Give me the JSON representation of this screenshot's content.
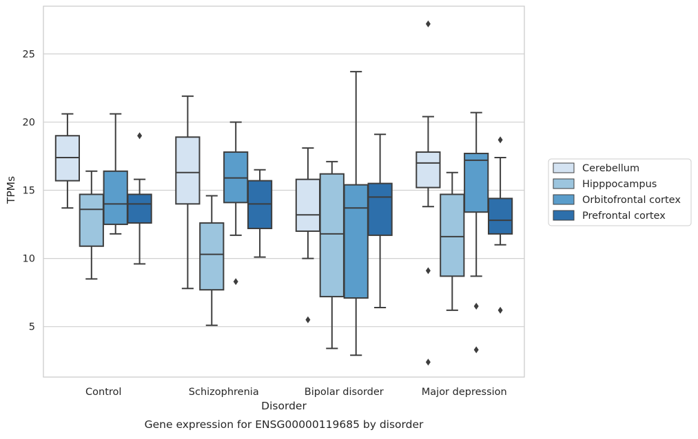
{
  "chart_data": {
    "type": "box",
    "title": "",
    "caption": "Gene expression for ENSG00000119685 by disorder",
    "xlabel": "Disorder",
    "ylabel": "TPMs",
    "ylim": [
      1.3,
      28.5
    ],
    "yticks": [
      5,
      10,
      15,
      20,
      25
    ],
    "grid": "horizontal",
    "legend_position": "right",
    "categories": [
      "Control",
      "Schizophrenia",
      "Bipolar disorder",
      "Major depression"
    ],
    "series": [
      {
        "name": "Cerebellum",
        "color": "#d4e3f2",
        "boxes": [
          {
            "whislo": 13.7,
            "q1": 15.7,
            "med": 17.4,
            "q3": 19.0,
            "whishi": 20.6,
            "fliers": []
          },
          {
            "whislo": 7.8,
            "q1": 14.0,
            "med": 16.3,
            "q3": 18.9,
            "whishi": 21.9,
            "fliers": []
          },
          {
            "whislo": 10.0,
            "q1": 12.0,
            "med": 13.2,
            "q3": 15.8,
            "whishi": 18.1,
            "fliers": [
              5.5
            ]
          },
          {
            "whislo": 13.8,
            "q1": 15.2,
            "med": 17.0,
            "q3": 17.8,
            "whishi": 20.4,
            "fliers": [
              2.4,
              9.1,
              27.2
            ]
          }
        ]
      },
      {
        "name": "Hipppocampus",
        "color": "#9cc5de",
        "boxes": [
          {
            "whislo": 8.5,
            "q1": 10.9,
            "med": 13.6,
            "q3": 14.7,
            "whishi": 16.4,
            "fliers": []
          },
          {
            "whislo": 5.1,
            "q1": 7.7,
            "med": 10.3,
            "q3": 12.6,
            "whishi": 14.6,
            "fliers": []
          },
          {
            "whislo": 3.4,
            "q1": 7.2,
            "med": 11.8,
            "q3": 16.2,
            "whishi": 17.1,
            "fliers": []
          },
          {
            "whislo": 6.2,
            "q1": 8.7,
            "med": 11.6,
            "q3": 14.7,
            "whishi": 16.3,
            "fliers": []
          }
        ]
      },
      {
        "name": "Orbitofrontal cortex",
        "color": "#5a9dcb",
        "boxes": [
          {
            "whislo": 11.8,
            "q1": 12.5,
            "med": 14.0,
            "q3": 16.4,
            "whishi": 20.6,
            "fliers": []
          },
          {
            "whislo": 11.7,
            "q1": 14.1,
            "med": 15.9,
            "q3": 17.8,
            "whishi": 20.0,
            "fliers": [
              8.3
            ]
          },
          {
            "whislo": 2.9,
            "q1": 7.1,
            "med": 13.7,
            "q3": 15.4,
            "whishi": 23.7,
            "fliers": []
          },
          {
            "whislo": 8.7,
            "q1": 13.4,
            "med": 17.2,
            "q3": 17.7,
            "whishi": 20.7,
            "fliers": [
              3.3,
              6.5
            ]
          }
        ]
      },
      {
        "name": "Prefrontal cortex",
        "color": "#2d6fab",
        "boxes": [
          {
            "whislo": 9.6,
            "q1": 12.6,
            "med": 14.0,
            "q3": 14.7,
            "whishi": 15.8,
            "fliers": [
              19.0
            ]
          },
          {
            "whislo": 10.1,
            "q1": 12.2,
            "med": 14.0,
            "q3": 15.7,
            "whishi": 16.5,
            "fliers": []
          },
          {
            "whislo": 6.4,
            "q1": 11.7,
            "med": 14.5,
            "q3": 15.5,
            "whishi": 19.1,
            "fliers": []
          },
          {
            "whislo": 11.0,
            "q1": 11.8,
            "med": 12.8,
            "q3": 14.4,
            "whishi": 17.4,
            "fliers": [
              6.2,
              18.7
            ]
          }
        ]
      }
    ]
  }
}
